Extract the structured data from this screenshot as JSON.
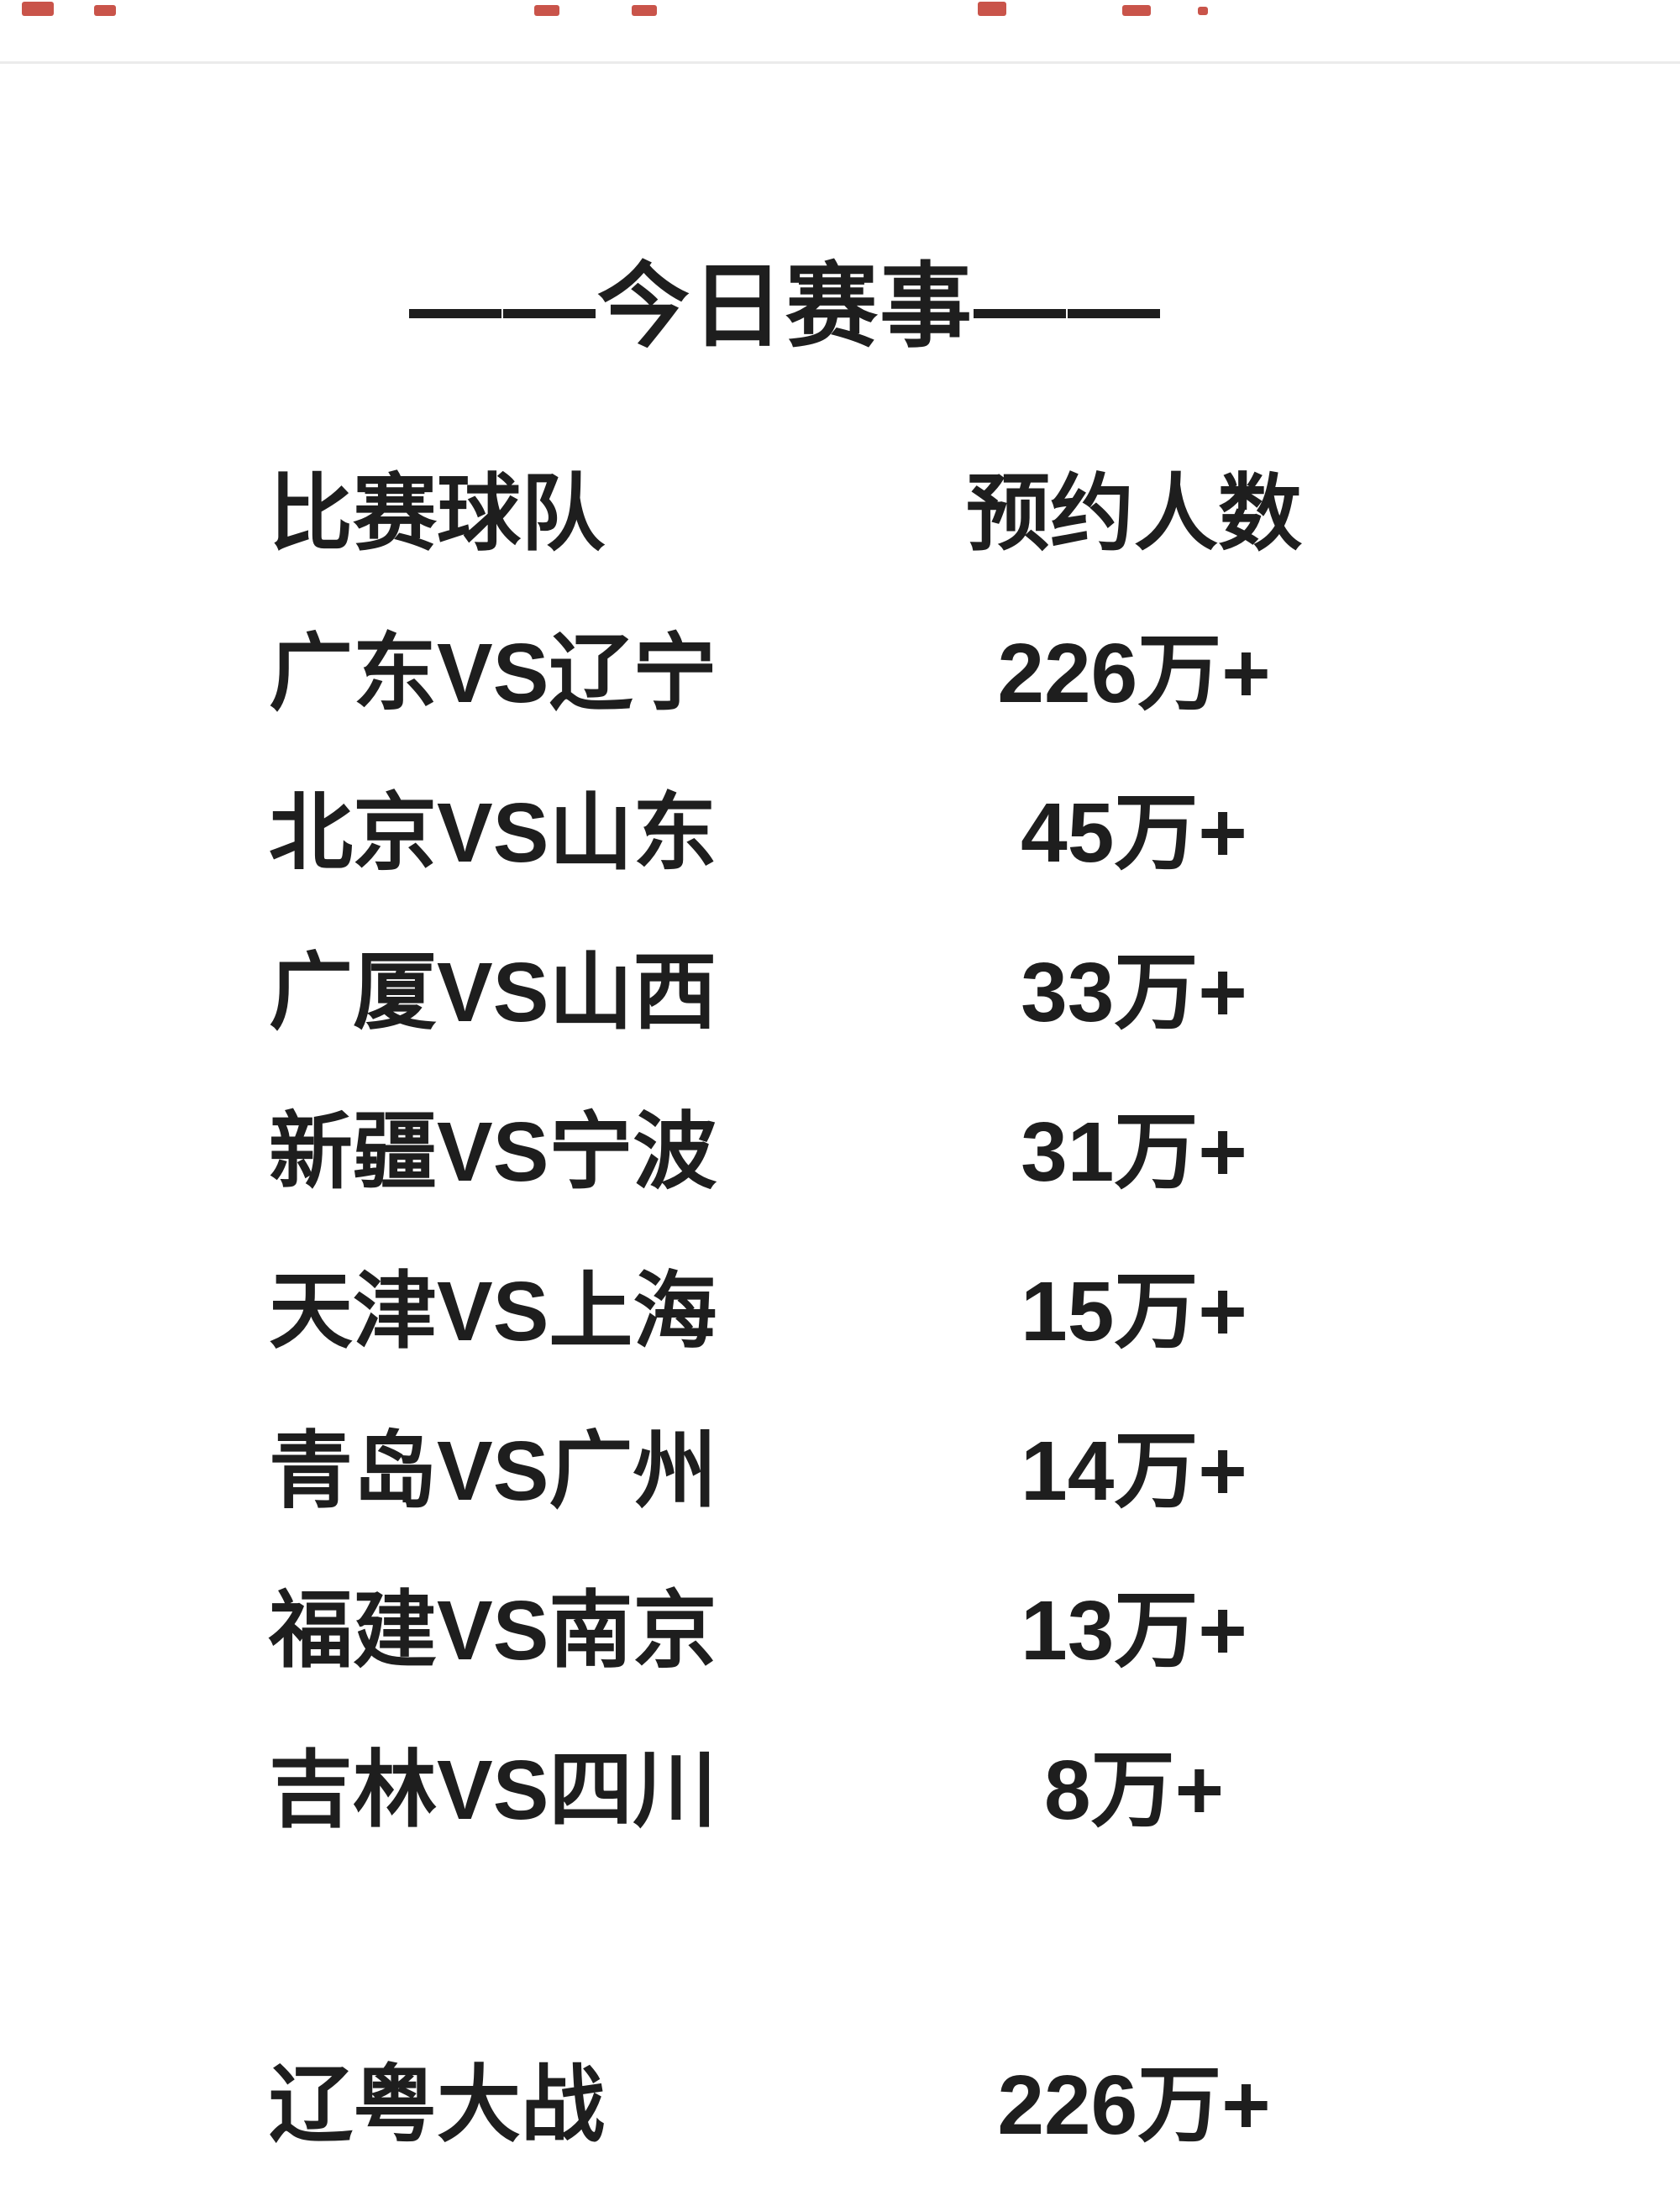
{
  "page": {
    "title": "——今日赛事——",
    "colors": {
      "text": "#1e1e1e",
      "background": "#ffffff",
      "divider": "#ebebeb",
      "accent_marks": "#c4453b"
    },
    "table": {
      "headers": {
        "team": "比赛球队",
        "reservations": "预约人数"
      },
      "rows": [
        {
          "team": "广东VS辽宁",
          "reservations": "226万+"
        },
        {
          "team": "北京VS山东",
          "reservations": "45万+"
        },
        {
          "team": "广厦VS山西",
          "reservations": "33万+"
        },
        {
          "team": "新疆VS宁波",
          "reservations": "31万+"
        },
        {
          "team": "天津VS上海",
          "reservations": "15万+"
        },
        {
          "team": "青岛VS广州",
          "reservations": "14万+"
        },
        {
          "team": "福建VS南京",
          "reservations": "13万+"
        },
        {
          "team": "吉林VS四川",
          "reservations": "8万+"
        }
      ],
      "highlight_row": {
        "team": "辽粤大战",
        "reservations": "226万+"
      }
    }
  }
}
